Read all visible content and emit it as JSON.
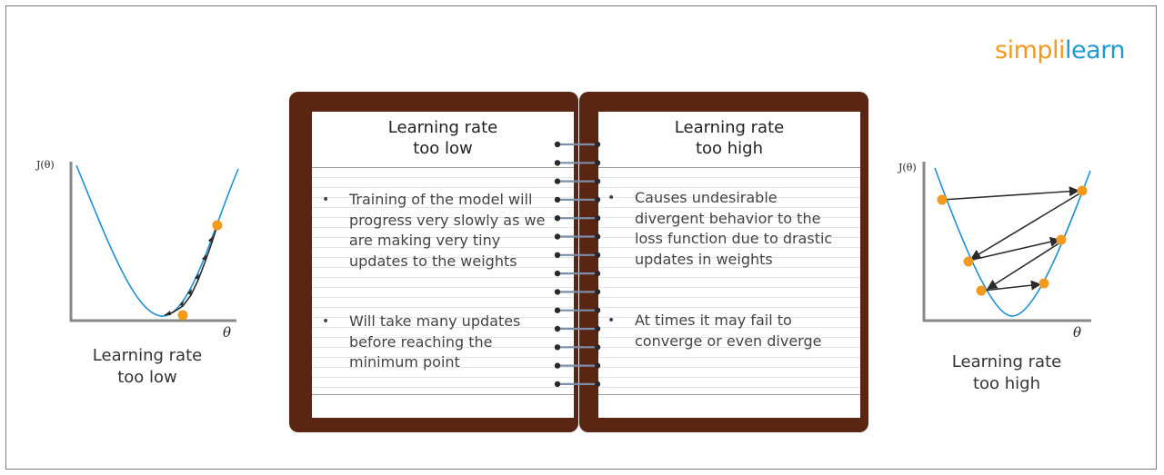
{
  "logo": {
    "part1": "simpl",
    "bar": "i",
    "part2": "learn"
  },
  "left_chart": {
    "y_axis_label": "J(θ)",
    "x_axis_label": "θ",
    "caption_line1": "Learning rate",
    "caption_line2": "too low"
  },
  "right_chart": {
    "y_axis_label": "J(θ)",
    "x_axis_label": "θ",
    "caption_line1": "Learning rate",
    "caption_line2": "too high"
  },
  "left_page": {
    "title_line1": "Learning rate",
    "title_line2": "too low",
    "bullets": [
      "Training of the model will progress very slowly as we are making very tiny updates to the weights",
      "Will take many updates before reaching the minimum point"
    ]
  },
  "right_page": {
    "title_line1": "Learning rate",
    "title_line2": "too high",
    "bullets": [
      "Causes undesirable divergent behavior to the loss function due to drastic updates in weights",
      "At times it may fail to converge or even diverge"
    ]
  },
  "colors": {
    "book_cover": "#5a2513",
    "curve": "#1f8fd4",
    "point": "#f29a1e",
    "arrow": "#2b2b2b",
    "axis": "#888888"
  }
}
